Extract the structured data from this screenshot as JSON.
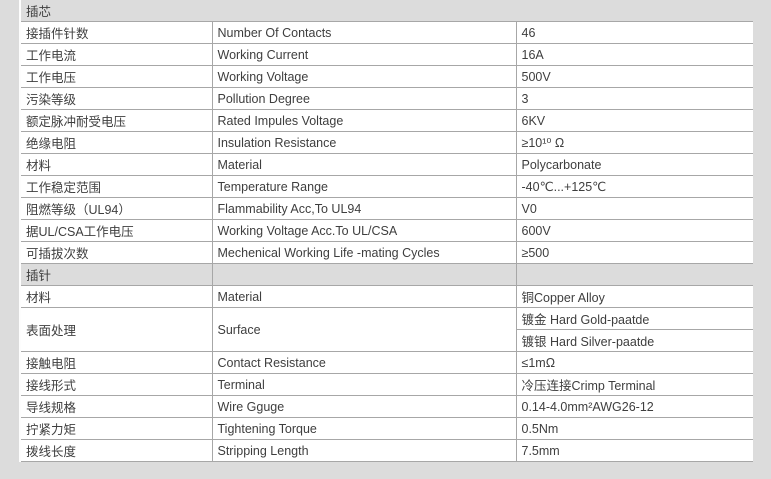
{
  "palette": {
    "page_background": "#dcdcdc",
    "cell_background": "#ffffff",
    "section_row_background": "#dcdcdc",
    "border_color": "#a7a7a7",
    "text_color": "#3e3e3e"
  },
  "table": {
    "sections": [
      {
        "title": "插芯",
        "rows": [
          {
            "cn": "接插件针数",
            "en": "Number Of Contacts",
            "value": "46"
          },
          {
            "cn": "工作电流",
            "en": "Working Current",
            "value": "16A"
          },
          {
            "cn": "工作电压",
            "en": "Working Voltage",
            "value": "500V"
          },
          {
            "cn": "污染等级",
            "en": "Pollution Degree",
            "value": "3"
          },
          {
            "cn": "额定脉冲耐受电压",
            "en": "Rated Impules Voltage",
            "value": "6KV"
          },
          {
            "cn": "绝缘电阻",
            "en": "Insulation Resistance",
            "value": "≥10¹⁰ Ω"
          },
          {
            "cn": "材料",
            "en": "Material",
            "value": "Polycarbonate"
          },
          {
            "cn": "工作稳定范围",
            "en": "Temperature Range",
            "value": "-40℃...+125℃"
          },
          {
            "cn": "阻燃等级（UL94）",
            "en": "Flammability Acc,To UL94",
            "value": "V0"
          },
          {
            "cn": "据UL/CSA工作电压",
            "en": "Working Voltage Acc.To UL/CSA",
            "value": "600V"
          },
          {
            "cn": "可插拔次数",
            "en": "Mechenical Working Life -mating Cycles",
            "value": "≥500"
          }
        ]
      },
      {
        "title": "插针",
        "rows": [
          {
            "cn": "材料",
            "en": "Material",
            "value": "铜Copper Alloy"
          },
          {
            "cn": "表面处理",
            "en": "Surface",
            "value": "镀金 Hard Gold-paatde",
            "value2": "镀银 Hard Silver-paatde"
          },
          {
            "cn": "接触电阻",
            "en": "Contact Resistance",
            "value": "≤1mΩ"
          },
          {
            "cn": "接线形式",
            "en": "Terminal",
            "value": "冷压连接Crimp Terminal"
          },
          {
            "cn": "导线规格",
            "en": "Wire Gguge",
            "value": "0.14-4.0mm²AWG26-12"
          },
          {
            "cn": "拧紧力矩",
            "en": "Tightening Torque",
            "value": "0.5Nm"
          },
          {
            "cn": "拨线长度",
            "en": "Stripping Length",
            "value": "7.5mm"
          }
        ]
      }
    ]
  }
}
